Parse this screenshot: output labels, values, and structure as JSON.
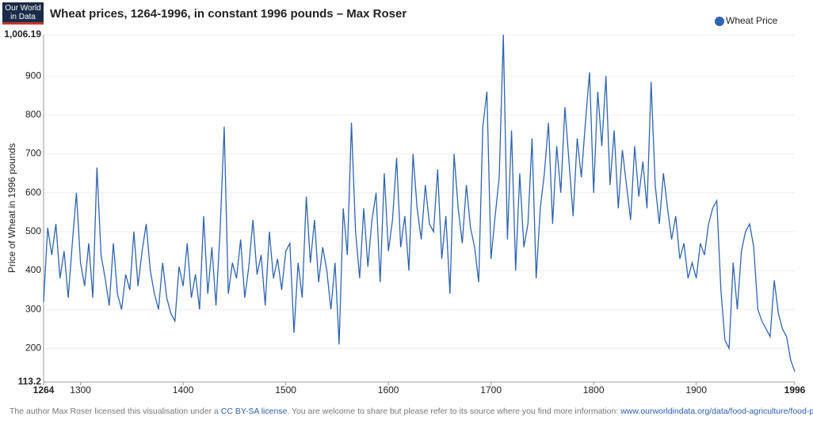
{
  "logo": [
    "Our World",
    "in Data"
  ],
  "footer": {
    "before": "The author Max Roser licensed this visualisation under a ",
    "license": "CC BY-SA license",
    "middle": ". You are welcome to share but please refer to its source where you find more information: ",
    "link": "www.ourworldindata.org/data/food-agriculture/food-prices"
  },
  "chart_data": {
    "type": "line",
    "title": "Wheat prices, 1264-1996, in constant 1996 pounds – Max Roser",
    "y_label": "Price of Wheat in 1996 pounds",
    "legend": "top-right",
    "grid": true,
    "xlim": [
      1264,
      1996
    ],
    "xticks": [
      1264,
      1300,
      1400,
      1500,
      1600,
      1700,
      1800,
      1900,
      1996
    ],
    "ylim": [
      113.2,
      1006.19
    ],
    "yticks": [
      113.2,
      200,
      300,
      400,
      500,
      600,
      700,
      800,
      900,
      {
        "value": 1006.19,
        "label": "1,006.19"
      }
    ],
    "x": [
      1264,
      1268,
      1272,
      1276,
      1280,
      1284,
      1288,
      1292,
      1296,
      1300,
      1304,
      1308,
      1312,
      1316,
      1320,
      1324,
      1328,
      1332,
      1336,
      1340,
      1344,
      1348,
      1352,
      1356,
      1360,
      1364,
      1368,
      1372,
      1376,
      1380,
      1384,
      1388,
      1392,
      1396,
      1400,
      1404,
      1408,
      1412,
      1416,
      1420,
      1424,
      1428,
      1432,
      1436,
      1440,
      1444,
      1448,
      1452,
      1456,
      1460,
      1464,
      1468,
      1472,
      1476,
      1480,
      1484,
      1488,
      1492,
      1496,
      1500,
      1504,
      1508,
      1512,
      1516,
      1520,
      1524,
      1528,
      1532,
      1536,
      1540,
      1544,
      1548,
      1552,
      1556,
      1560,
      1564,
      1568,
      1572,
      1576,
      1580,
      1584,
      1588,
      1592,
      1596,
      1600,
      1604,
      1608,
      1612,
      1616,
      1620,
      1624,
      1628,
      1632,
      1636,
      1640,
      1644,
      1648,
      1652,
      1656,
      1660,
      1664,
      1668,
      1672,
      1676,
      1680,
      1684,
      1688,
      1692,
      1696,
      1700,
      1704,
      1708,
      1712,
      1716,
      1720,
      1724,
      1728,
      1732,
      1736,
      1740,
      1744,
      1748,
      1752,
      1756,
      1760,
      1764,
      1768,
      1772,
      1776,
      1780,
      1784,
      1788,
      1792,
      1796,
      1800,
      1804,
      1808,
      1812,
      1816,
      1820,
      1824,
      1828,
      1832,
      1836,
      1840,
      1844,
      1848,
      1852,
      1856,
      1860,
      1864,
      1868,
      1872,
      1876,
      1880,
      1884,
      1888,
      1892,
      1896,
      1900,
      1904,
      1908,
      1912,
      1916,
      1920,
      1924,
      1928,
      1932,
      1936,
      1940,
      1944,
      1948,
      1952,
      1956,
      1960,
      1964,
      1968,
      1972,
      1976,
      1980,
      1984,
      1988,
      1992,
      1996
    ],
    "series": [
      {
        "name": "Wheat Price",
        "color": "#2f64ae",
        "values": [
          320,
          510,
          440,
          520,
          380,
          450,
          330,
          470,
          600,
          420,
          360,
          470,
          330,
          665,
          440,
          380,
          310,
          470,
          340,
          300,
          390,
          350,
          500,
          360,
          450,
          520,
          400,
          340,
          300,
          420,
          330,
          290,
          270,
          410,
          360,
          470,
          330,
          390,
          300,
          540,
          340,
          460,
          310,
          500,
          770,
          340,
          420,
          380,
          480,
          330,
          410,
          530,
          390,
          440,
          310,
          500,
          380,
          430,
          350,
          450,
          470,
          240,
          420,
          330,
          590,
          420,
          530,
          370,
          460,
          400,
          300,
          420,
          210,
          560,
          440,
          780,
          500,
          380,
          560,
          410,
          530,
          600,
          370,
          650,
          450,
          530,
          690,
          460,
          540,
          400,
          700,
          560,
          480,
          620,
          520,
          500,
          660,
          430,
          540,
          340,
          700,
          560,
          470,
          620,
          510,
          460,
          370,
          770,
          860,
          430,
          540,
          640,
          1006.19,
          480,
          760,
          400,
          650,
          460,
          520,
          740,
          380,
          560,
          650,
          780,
          520,
          720,
          600,
          820,
          680,
          540,
          740,
          640,
          780,
          910,
          600,
          860,
          720,
          900,
          620,
          760,
          560,
          710,
          620,
          530,
          720,
          590,
          680,
          560,
          885,
          620,
          520,
          650,
          560,
          480,
          540,
          430,
          470,
          380,
          420,
          380,
          470,
          440,
          520,
          560,
          580,
          350,
          220,
          200,
          420,
          300,
          450,
          500,
          520,
          460,
          300,
          270,
          250,
          230,
          375,
          290,
          250,
          230,
          170,
          140
        ]
      }
    ]
  }
}
